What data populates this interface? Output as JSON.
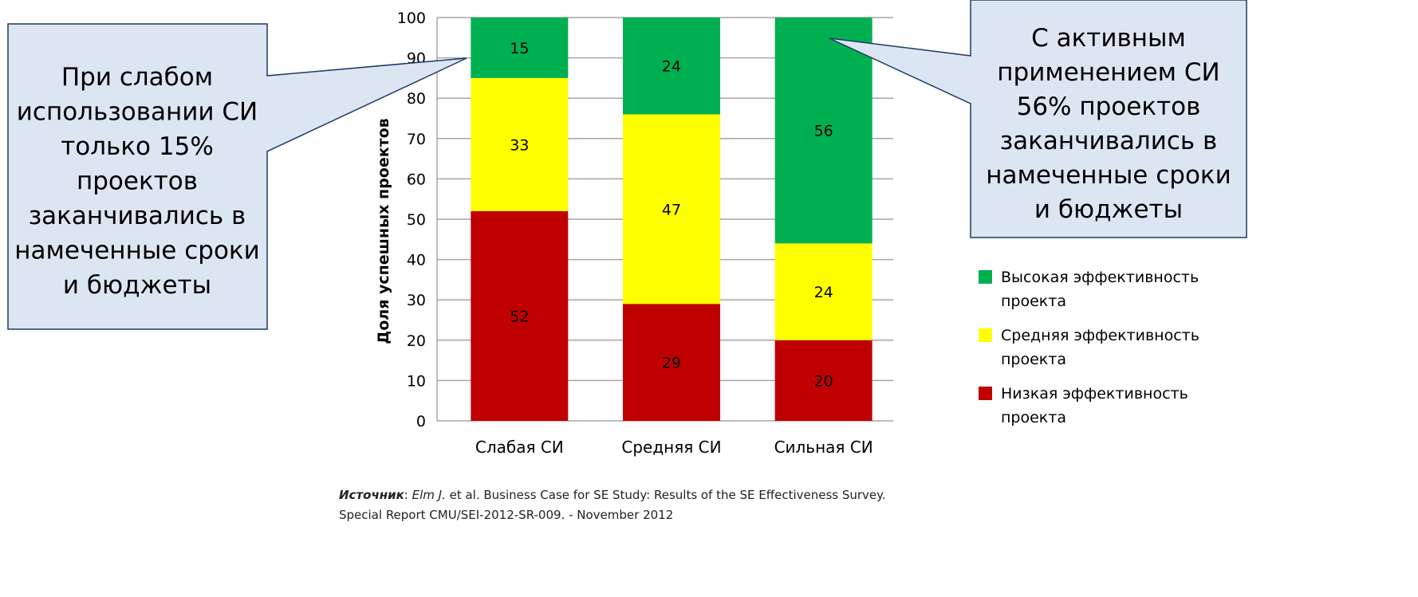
{
  "chart_data": {
    "type": "bar",
    "stacked": true,
    "categories": [
      "Слабая СИ",
      "Средняя СИ",
      "Сильная СИ"
    ],
    "series": [
      {
        "name": "Низкая эффективность проекта",
        "values": [
          52,
          29,
          20
        ],
        "color": "#c00000"
      },
      {
        "name": "Средняя эффективность проекта",
        "values": [
          33,
          47,
          24
        ],
        "color": "#ffff00"
      },
      {
        "name": "Высокая эффективность проекта",
        "values": [
          15,
          24,
          56
        ],
        "color": "#00b050"
      }
    ],
    "legend_order": [
      2,
      1,
      0
    ],
    "ylabel": "Доля успешных проектов",
    "xlabel": "",
    "ylim": [
      0,
      100
    ],
    "yticks": [
      0,
      10,
      20,
      30,
      40,
      50,
      60,
      70,
      80,
      90,
      100
    ],
    "grid": true,
    "legend_position": "right"
  },
  "callouts": {
    "left": [
      "При слабом",
      "использовании СИ",
      "только 15%",
      "проектов",
      "заканчивались в",
      "намеченные сроки",
      "и бюджеты"
    ],
    "right": [
      "С активным",
      "применением СИ",
      "56% проектов",
      "заканчивались в",
      "намеченные сроки",
      "и бюджеты"
    ],
    "fill": "#dce6f2",
    "border": "#1f3864"
  },
  "source": {
    "label": "Источник",
    "author": "Elm J.",
    "line1_rest": " et al. Business Case for SE Study: Results of the SE Effectiveness Survey.",
    "line2": "Special Report CMU/SEI-2012-SR-009. - November 2012"
  }
}
